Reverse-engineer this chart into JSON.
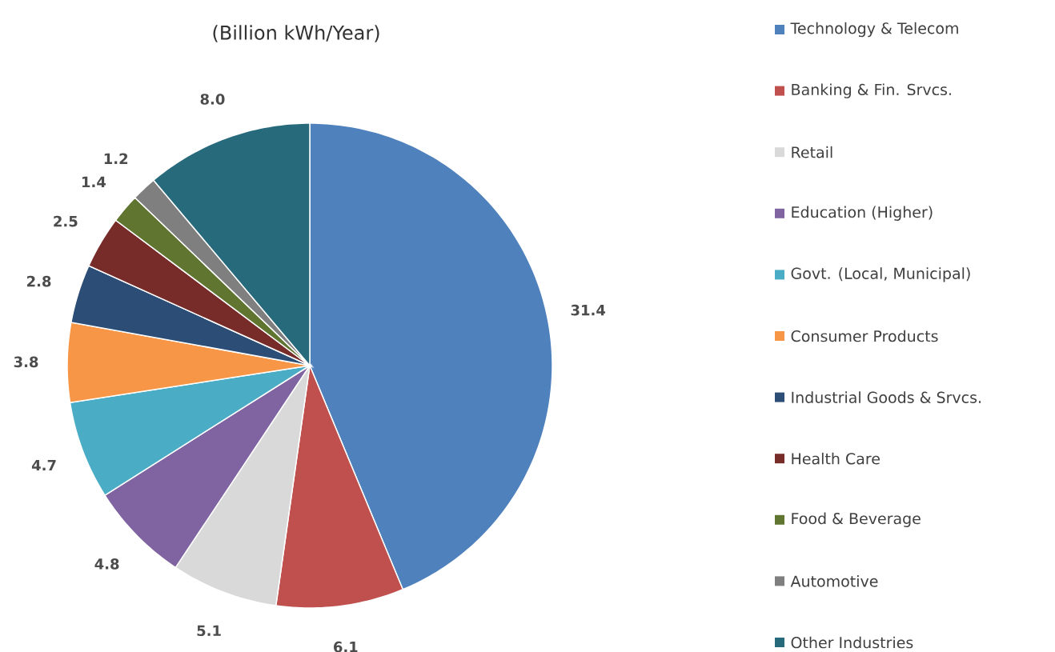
{
  "chart_data": {
    "type": "pie",
    "title": "(Billion kWh/Year)",
    "categories": [
      "Technology & Telecom",
      "Banking & Fin. Srvcs.",
      "Retail",
      "Education (Higher)",
      "Govt. (Local, Municipal)",
      "Consumer Products",
      "Industrial Goods & Srvcs.",
      "Health Care",
      "Food & Beverage",
      "Automotive",
      "Other Industries"
    ],
    "values": [
      31.4,
      6.1,
      5.1,
      4.8,
      4.7,
      3.8,
      2.8,
      2.5,
      1.4,
      1.2,
      8.0
    ],
    "value_labels": [
      "31.4",
      "6.1",
      "5.1",
      "4.8",
      "4.7",
      "3.8",
      "2.8",
      "2.5",
      "1.4",
      "1.2",
      "8.0"
    ],
    "colors": [
      "#4f81bd",
      "#c0504d",
      "#d9d9d9",
      "#8064a2",
      "#4bacc6",
      "#f79646",
      "#2c4d75",
      "#772c2a",
      "#5f7530",
      "#7f7f7f",
      "#276a7c"
    ],
    "legend": "right"
  }
}
